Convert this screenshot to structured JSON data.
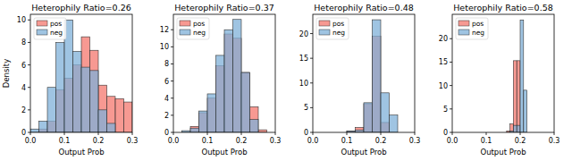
{
  "chart_data": [
    {
      "type": "histogram",
      "title": "Heterophily Ratio=0.26",
      "x_label": "Output Prob",
      "y_label": "Density",
      "bins": [
        0.0,
        0.025,
        0.05,
        0.075,
        0.1,
        0.125,
        0.15,
        0.175,
        0.2,
        0.225,
        0.25,
        0.275,
        0.3
      ],
      "series": [
        {
          "name": "pos",
          "color": "#f4776e",
          "values": [
            0,
            0.3,
            1.0,
            3.8,
            4.8,
            6.0,
            8.5,
            7.3,
            4.2,
            3.2,
            3.0,
            2.7
          ]
        },
        {
          "name": "neg",
          "color": "#7fb0d8",
          "values": [
            0.3,
            1.0,
            4.0,
            8.0,
            10.0,
            7.2,
            5.8,
            5.5,
            2.0,
            0.8,
            0,
            0
          ]
        }
      ],
      "xlim": [
        0.0,
        0.3
      ],
      "xticks": [
        {
          "value": 0.0,
          "label": "0.0"
        },
        {
          "value": 0.1,
          "label": "0.1"
        },
        {
          "value": 0.2,
          "label": "0.2"
        },
        {
          "value": 0.3,
          "label": "0.3"
        }
      ],
      "ylim": [
        0,
        10.5
      ],
      "yticks": [
        0,
        2,
        4,
        6,
        8,
        10
      ],
      "legend": "upper-left"
    },
    {
      "type": "histogram",
      "title": "Heterophily Ratio=0.37",
      "x_label": "Output Prob",
      "bins": [
        0.0,
        0.025,
        0.05,
        0.075,
        0.1,
        0.125,
        0.15,
        0.175,
        0.2,
        0.225,
        0.25,
        0.275,
        0.3
      ],
      "series": [
        {
          "name": "pos",
          "color": "#f4776e",
          "values": [
            0,
            0,
            0.7,
            2.3,
            4.0,
            7.8,
            11.5,
            11.0,
            7.0,
            3.0,
            0.3,
            0
          ]
        },
        {
          "name": "neg",
          "color": "#7fb0d8",
          "values": [
            0,
            0.2,
            0.5,
            2.5,
            4.5,
            9.0,
            12.0,
            13.2,
            7.0,
            1.5,
            0,
            0
          ]
        }
      ],
      "xlim": [
        0.0,
        0.3
      ],
      "xticks": [
        {
          "value": 0.0,
          "label": "0.0"
        },
        {
          "value": 0.1,
          "label": "0.1"
        },
        {
          "value": 0.2,
          "label": "0.2"
        },
        {
          "value": 0.3,
          "label": "0.3"
        }
      ],
      "ylim": [
        0,
        13.8
      ],
      "yticks": [
        0,
        2,
        4,
        6,
        8,
        10,
        12
      ],
      "legend": "upper-left"
    },
    {
      "type": "histogram",
      "title": "Heterophily Ratio=0.48",
      "x_label": "Output Prob",
      "bins": [
        0.0,
        0.025,
        0.05,
        0.075,
        0.1,
        0.125,
        0.15,
        0.175,
        0.2,
        0.225,
        0.25,
        0.275,
        0.3
      ],
      "series": [
        {
          "name": "pos",
          "color": "#f4776e",
          "values": [
            0,
            0,
            0,
            0,
            0.3,
            1.0,
            5.8,
            19.5,
            2.0,
            0,
            0,
            0
          ]
        },
        {
          "name": "neg",
          "color": "#7fb0d8",
          "values": [
            0,
            0,
            0,
            0,
            0.3,
            0.5,
            6.0,
            22.8,
            8.0,
            3.5,
            0,
            0
          ]
        }
      ],
      "xlim": [
        0.0,
        0.3
      ],
      "xticks": [
        {
          "value": 0.0,
          "label": "0.0"
        },
        {
          "value": 0.1,
          "label": "0.1"
        },
        {
          "value": 0.2,
          "label": "0.2"
        },
        {
          "value": 0.3,
          "label": "0.3"
        }
      ],
      "ylim": [
        0,
        23.9
      ],
      "yticks": [
        0,
        5,
        10,
        15,
        20
      ],
      "legend": "upper-left"
    },
    {
      "type": "histogram",
      "title": "Heterophily Ratio=0.58",
      "x_label": "Output Prob",
      "bins": [
        0.16,
        0.17,
        0.18,
        0.19,
        0.2,
        0.21,
        0.22
      ],
      "series": [
        {
          "name": "pos",
          "color": "#f4776e",
          "values": [
            0.3,
            1.8,
            15.3,
            15.3,
            0,
            0
          ]
        },
        {
          "name": "neg",
          "color": "#7fb0d8",
          "values": [
            0,
            0.3,
            1.5,
            1.5,
            24.0,
            9.0
          ]
        }
      ],
      "xlim": [
        0.0,
        0.3
      ],
      "xticks": [
        {
          "value": 0.0,
          "label": "0.0"
        },
        {
          "value": 0.1,
          "label": "0.1"
        },
        {
          "value": 0.2,
          "label": "0.2"
        },
        {
          "value": 0.3,
          "label": "0.3"
        }
      ],
      "ylim": [
        0,
        25.2
      ],
      "yticks": [
        0,
        5,
        10,
        15,
        20
      ],
      "legend": "upper-left"
    }
  ]
}
